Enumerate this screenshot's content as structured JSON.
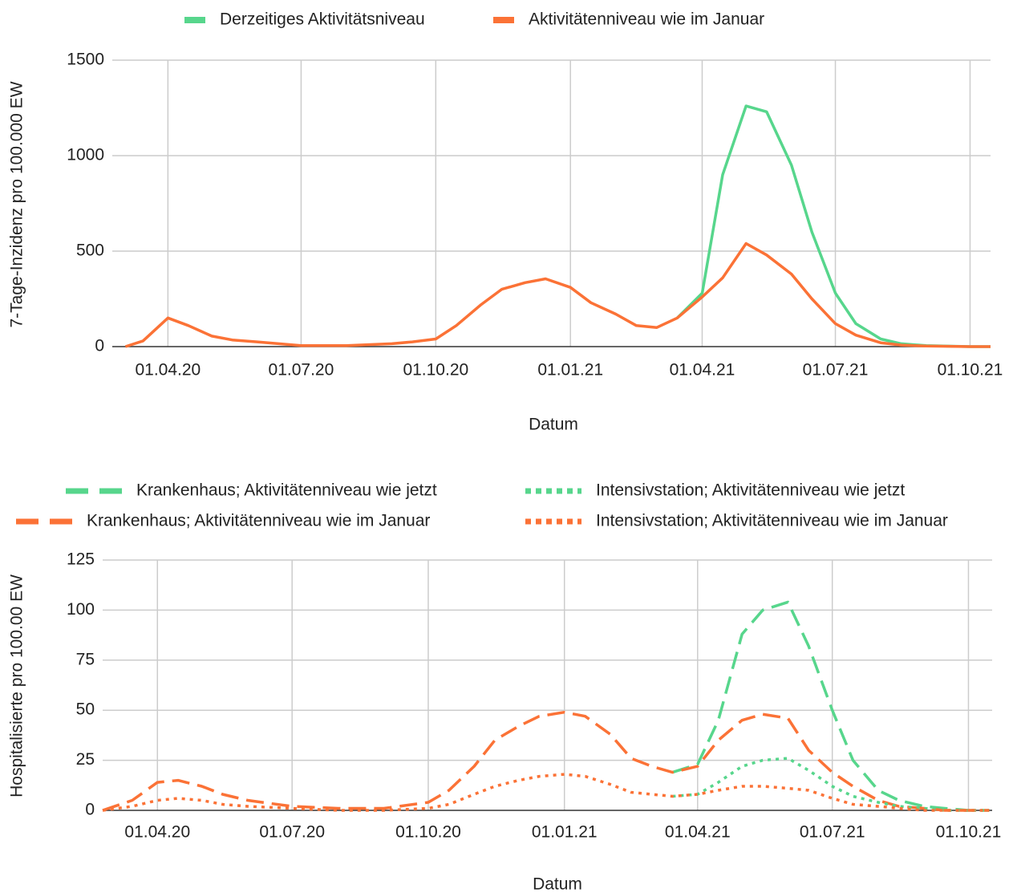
{
  "chart_data": [
    {
      "type": "line",
      "y_label": "7-Tage-Inzidenz pro 100.000 EW",
      "x_label": "Datum",
      "x": [
        "2020-03-03",
        "2020-03-15",
        "2020-04-01",
        "2020-04-15",
        "2020-05-01",
        "2020-05-15",
        "2020-06-01",
        "2020-07-01",
        "2020-08-01",
        "2020-09-01",
        "2020-09-15",
        "2020-10-01",
        "2020-10-15",
        "2020-11-01",
        "2020-11-15",
        "2020-12-01",
        "2020-12-15",
        "2021-01-01",
        "2021-01-15",
        "2021-02-01",
        "2021-02-15",
        "2021-03-01",
        "2021-03-15",
        "2021-04-01",
        "2021-04-15",
        "2021-05-01",
        "2021-05-15",
        "2021-06-01",
        "2021-06-15",
        "2021-07-01",
        "2021-07-15",
        "2021-08-01",
        "2021-08-15",
        "2021-09-01",
        "2021-10-01",
        "2021-10-15"
      ],
      "series": [
        {
          "name": "Derzeitiges Aktivitätsniveau",
          "color": "#57d68c",
          "values": [
            null,
            null,
            null,
            null,
            null,
            null,
            null,
            null,
            null,
            null,
            null,
            null,
            null,
            null,
            null,
            null,
            null,
            null,
            null,
            null,
            null,
            null,
            150,
            280,
            900,
            1260,
            1230,
            950,
            600,
            280,
            120,
            40,
            15,
            5,
            0,
            0
          ]
        },
        {
          "name": "Aktivitätenniveau wie im Januar",
          "color": "#fb7236",
          "values": [
            0,
            30,
            150,
            110,
            55,
            35,
            25,
            5,
            5,
            15,
            25,
            40,
            110,
            220,
            300,
            335,
            355,
            310,
            230,
            170,
            110,
            100,
            150,
            260,
            360,
            540,
            480,
            380,
            250,
            120,
            60,
            20,
            8,
            3,
            0,
            0
          ]
        }
      ],
      "xlim": [
        "2020-02-23",
        "2021-10-15"
      ],
      "xticks": [
        {
          "value": "2020-04-01",
          "label": "01.04.20"
        },
        {
          "value": "2020-07-01",
          "label": "01.07.20"
        },
        {
          "value": "2020-10-01",
          "label": "01.10.20"
        },
        {
          "value": "2021-01-01",
          "label": "01.01.21"
        },
        {
          "value": "2021-04-01",
          "label": "01.04.21"
        },
        {
          "value": "2021-07-01",
          "label": "01.07.21"
        },
        {
          "value": "2021-10-01",
          "label": "01.10.21"
        }
      ],
      "ylim": [
        0,
        1500
      ],
      "yticks": [
        0,
        500,
        1000,
        1500
      ],
      "grid": true,
      "legend": "top"
    },
    {
      "type": "line",
      "y_label": "Hospitalisierte pro 100.00 EW",
      "x_label": "Datum",
      "x": [
        "2020-02-24",
        "2020-03-15",
        "2020-04-01",
        "2020-04-15",
        "2020-05-01",
        "2020-05-15",
        "2020-06-01",
        "2020-07-01",
        "2020-08-01",
        "2020-09-01",
        "2020-10-01",
        "2020-10-15",
        "2020-11-01",
        "2020-11-15",
        "2020-12-01",
        "2020-12-15",
        "2021-01-01",
        "2021-01-15",
        "2021-02-01",
        "2021-02-15",
        "2021-03-01",
        "2021-03-15",
        "2021-04-01",
        "2021-04-15",
        "2021-05-01",
        "2021-05-15",
        "2021-06-01",
        "2021-06-15",
        "2021-07-01",
        "2021-07-15",
        "2021-08-01",
        "2021-08-15",
        "2021-09-01",
        "2021-09-15",
        "2021-10-01",
        "2021-10-15"
      ],
      "series": [
        {
          "name": "Krankenhaus; Aktivitätenniveau wie jetzt",
          "color": "#57d68c",
          "dash": "dashed",
          "values": [
            null,
            null,
            null,
            null,
            null,
            null,
            null,
            null,
            null,
            null,
            null,
            null,
            null,
            null,
            null,
            null,
            null,
            null,
            null,
            null,
            null,
            19,
            23,
            45,
            88,
            100,
            104,
            82,
            50,
            25,
            10,
            5,
            2,
            1,
            0,
            0
          ]
        },
        {
          "name": "Krankenhaus; Aktivitätenniveau wie im Januar",
          "color": "#fb7236",
          "dash": "dashed",
          "values": [
            0,
            5,
            14,
            15,
            12,
            8,
            5,
            2,
            1,
            1,
            4,
            10,
            22,
            35,
            42,
            47,
            49,
            47,
            38,
            26,
            22,
            19,
            22,
            35,
            45,
            48,
            46,
            30,
            19,
            12,
            5,
            2,
            1,
            0,
            0,
            0
          ]
        },
        {
          "name": "Intensivstation; Aktivitätenniveau wie jetzt",
          "color": "#57d68c",
          "dash": "dotted",
          "values": [
            null,
            null,
            null,
            null,
            null,
            null,
            null,
            null,
            null,
            null,
            null,
            null,
            null,
            null,
            null,
            null,
            null,
            null,
            null,
            null,
            null,
            7,
            8,
            14,
            22,
            25,
            26,
            20,
            12,
            7,
            4,
            2,
            1,
            0,
            0,
            0
          ]
        },
        {
          "name": "Intensivstation; Aktivitätenniveau wie im Januar",
          "color": "#fb7236",
          "dash": "dotted",
          "values": [
            0,
            2,
            5,
            6,
            5,
            3,
            2,
            1,
            0,
            0,
            1,
            3,
            8,
            12,
            15,
            17,
            18,
            17,
            13,
            9,
            8,
            7,
            8,
            10,
            12,
            12,
            11,
            10,
            6,
            3,
            2,
            1,
            0,
            0,
            0,
            0
          ]
        }
      ],
      "xlim": [
        "2020-02-24",
        "2021-10-17"
      ],
      "xticks": [
        {
          "value": "2020-04-01",
          "label": "01.04.20"
        },
        {
          "value": "2020-07-01",
          "label": "01.07.20"
        },
        {
          "value": "2020-10-01",
          "label": "01.10.20"
        },
        {
          "value": "2021-01-01",
          "label": "01.01.21"
        },
        {
          "value": "2021-04-01",
          "label": "01.04.21"
        },
        {
          "value": "2021-07-01",
          "label": "01.07.21"
        },
        {
          "value": "2021-10-01",
          "label": "01.10.21"
        }
      ],
      "ylim": [
        0,
        125
      ],
      "yticks": [
        0,
        25,
        50,
        75,
        100,
        125
      ],
      "grid": true,
      "legend": "top"
    }
  ]
}
